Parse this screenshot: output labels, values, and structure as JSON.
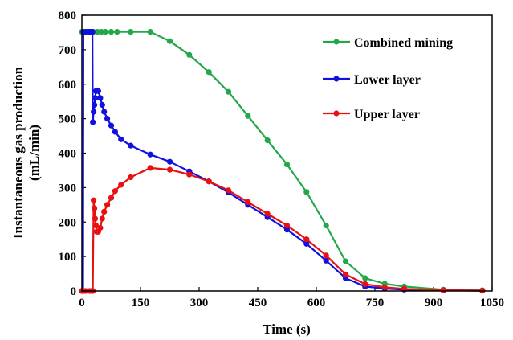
{
  "chart_data": {
    "type": "line",
    "xlabel": "Time (s)",
    "ylabel_line1": "Instantaneous gas production",
    "ylabel_line2": "(mL/min)",
    "xlim": [
      0,
      1050
    ],
    "ylim": [
      0,
      800
    ],
    "xticks": [
      0,
      150,
      300,
      450,
      600,
      750,
      900,
      1050
    ],
    "yticks": [
      0,
      100,
      200,
      300,
      400,
      500,
      600,
      700,
      800
    ],
    "legend_position": "top-right",
    "series": [
      {
        "name": "Combined mining",
        "color": "#22a84a",
        "points": [
          [
            0,
            752
          ],
          [
            5,
            752
          ],
          [
            10,
            752
          ],
          [
            15,
            752
          ],
          [
            20,
            752
          ],
          [
            25,
            752
          ],
          [
            30,
            752
          ],
          [
            40,
            752
          ],
          [
            50,
            752
          ],
          [
            60,
            752
          ],
          [
            75,
            752
          ],
          [
            90,
            752
          ],
          [
            125,
            752
          ],
          [
            175,
            752
          ],
          [
            225,
            725
          ],
          [
            275,
            685
          ],
          [
            325,
            635
          ],
          [
            375,
            578
          ],
          [
            425,
            508
          ],
          [
            475,
            437
          ],
          [
            525,
            367
          ],
          [
            575,
            287
          ],
          [
            625,
            190
          ],
          [
            675,
            86
          ],
          [
            725,
            37
          ],
          [
            775,
            21
          ],
          [
            825,
            13
          ],
          [
            925,
            4
          ],
          [
            1025,
            2
          ]
        ]
      },
      {
        "name": "Lower layer",
        "color": "#1010e0",
        "points": [
          [
            0,
            0
          ],
          [
            3,
            0
          ],
          [
            4,
            752
          ],
          [
            10,
            752
          ],
          [
            18,
            752
          ],
          [
            22,
            752
          ],
          [
            25,
            752
          ],
          [
            27,
            752
          ],
          [
            28,
            490
          ],
          [
            30,
            520
          ],
          [
            32,
            540
          ],
          [
            34,
            560
          ],
          [
            36,
            580
          ],
          [
            38,
            582
          ],
          [
            42,
            580
          ],
          [
            47,
            560
          ],
          [
            52,
            540
          ],
          [
            57,
            520
          ],
          [
            65,
            500
          ],
          [
            75,
            480
          ],
          [
            85,
            462
          ],
          [
            100,
            440
          ],
          [
            125,
            422
          ],
          [
            175,
            396
          ],
          [
            225,
            375
          ],
          [
            275,
            347
          ],
          [
            325,
            318
          ],
          [
            375,
            286
          ],
          [
            425,
            250
          ],
          [
            475,
            214
          ],
          [
            525,
            178
          ],
          [
            575,
            137
          ],
          [
            625,
            88
          ],
          [
            675,
            37
          ],
          [
            725,
            13
          ],
          [
            775,
            7
          ],
          [
            825,
            4
          ],
          [
            925,
            2
          ],
          [
            1025,
            1
          ]
        ]
      },
      {
        "name": "Upper layer",
        "color": "#e81010",
        "points": [
          [
            0,
            0
          ],
          [
            5,
            0
          ],
          [
            10,
            0
          ],
          [
            20,
            0
          ],
          [
            25,
            0
          ],
          [
            28,
            0
          ],
          [
            30,
            263
          ],
          [
            32,
            240
          ],
          [
            34,
            210
          ],
          [
            36,
            190
          ],
          [
            38,
            172
          ],
          [
            42,
            172
          ],
          [
            47,
            183
          ],
          [
            52,
            210
          ],
          [
            57,
            230
          ],
          [
            65,
            250
          ],
          [
            75,
            270
          ],
          [
            85,
            290
          ],
          [
            100,
            308
          ],
          [
            125,
            330
          ],
          [
            175,
            357
          ],
          [
            225,
            352
          ],
          [
            275,
            338
          ],
          [
            325,
            318
          ],
          [
            375,
            292
          ],
          [
            425,
            258
          ],
          [
            475,
            224
          ],
          [
            525,
            190
          ],
          [
            575,
            150
          ],
          [
            625,
            103
          ],
          [
            675,
            48
          ],
          [
            725,
            20
          ],
          [
            775,
            11
          ],
          [
            825,
            6
          ],
          [
            925,
            2
          ],
          [
            1025,
            1
          ]
        ]
      }
    ]
  }
}
